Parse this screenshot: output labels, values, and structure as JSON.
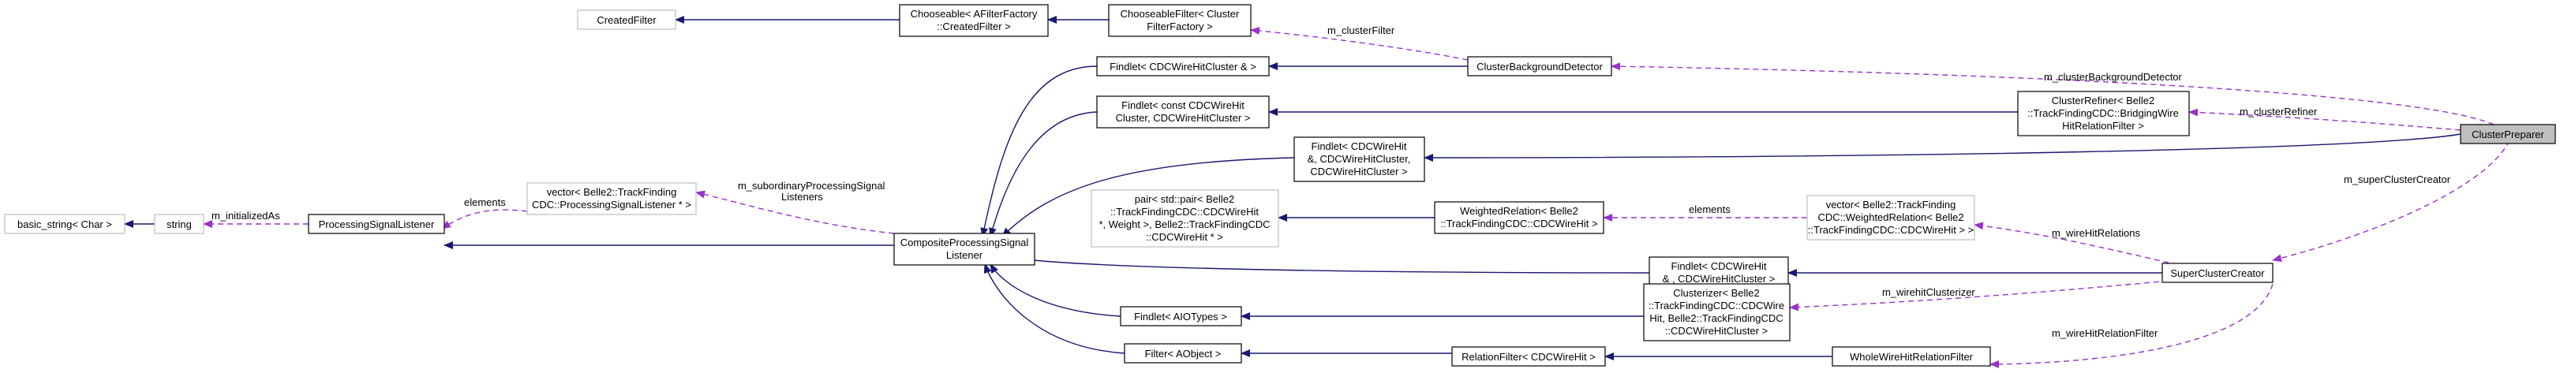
{
  "nodes": {
    "created_filter": [
      "CreatedFilter"
    ],
    "chooseable_afilterfactory": [
      "Chooseable< AFilterFactory",
      "::CreatedFilter >"
    ],
    "chooseable_filter": [
      "ChooseableFilter< Cluster",
      "FilterFactory >"
    ],
    "findlet_wirehit_cluster": [
      "Findlet< CDCWireHitCluster & >"
    ],
    "cluster_background_detector": [
      "ClusterBackgroundDetector"
    ],
    "findlet_const_wirehit": [
      "Findlet< const CDCWireHit",
      "Cluster, CDCWireHitCluster >"
    ],
    "cluster_refiner": [
      "ClusterRefiner< Belle2",
      "::TrackFindingCDC::BridgingWire",
      "HitRelationFilter >"
    ],
    "cluster_preparer": [
      "ClusterPreparer"
    ],
    "findlet_3": [
      "Findlet< CDCWireHit",
      "&, CDCWireHitCluster,",
      "CDCWireHitCluster >"
    ],
    "basic_string": [
      "basic_string< Char >"
    ],
    "string": [
      "string"
    ],
    "processing_signal_listener": [
      "ProcessingSignalListener"
    ],
    "vector_psl": [
      "vector< Belle2::TrackFinding",
      "CDC::ProcessingSignalListener * >"
    ],
    "composite_psl": [
      "CompositeProcessingSignal",
      "Listener"
    ],
    "pair_weight": [
      "pair< std::pair< Belle2",
      "::TrackFindingCDC::CDCWireHit",
      "*, Weight >, Belle2::TrackFindingCDC",
      "::CDCWireHit * >"
    ],
    "weighted_relation": [
      "WeightedRelation< Belle2",
      "::TrackFindingCDC::CDCWireHit >"
    ],
    "vector_weighted": [
      "vector< Belle2::TrackFinding",
      "CDC::WeightedRelation< Belle2",
      "::TrackFindingCDC::CDCWireHit > >"
    ],
    "findlet_wirehit_cluster2": [
      "Findlet< CDCWireHit",
      "& , CDCWireHitCluster >"
    ],
    "super_cluster_creator": [
      "SuperClusterCreator"
    ],
    "findlet_aiotypes": [
      "Findlet< AIOTypes >"
    ],
    "clusterizer": [
      "Clusterizer< Belle2",
      "::TrackFindingCDC::CDCWire",
      "Hit, Belle2::TrackFindingCDC",
      "::CDCWireHitCluster >"
    ],
    "filter_aobject": [
      "Filter< AObject >"
    ],
    "relation_filter": [
      "RelationFilter< CDCWireHit >"
    ],
    "whole_wirehit_relation_filter": [
      "WholeWireHitRelationFilter"
    ]
  },
  "edge_labels": {
    "m_clusterFilter": "m_clusterFilter",
    "m_clusterBackgroundDetector": "m_clusterBackgroundDetector",
    "m_clusterRefiner": "m_clusterRefiner",
    "m_superClusterCreator": "m_superClusterCreator",
    "m_initializedAs": "m_initializedAs",
    "elements_psl": "elements",
    "m_subordinaryProcessingSignalListeners": [
      "m_subordinaryProcessingSignal",
      "Listeners"
    ],
    "elements_weighted": "elements",
    "m_wireHitRelations": "m_wireHitRelations",
    "m_wirehitClusterizer": "m_wirehitClusterizer",
    "m_wireHitRelationFilter": "m_wireHitRelationFilter"
  },
  "colors": {
    "inheritance": "#191970",
    "usage": "#9a32cd",
    "focus_fill": "#bfbfbf",
    "external_border": "#bfbfbf"
  }
}
